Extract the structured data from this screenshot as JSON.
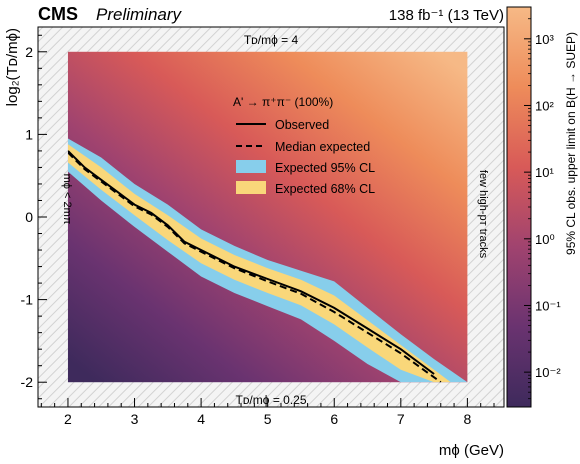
{
  "chart_data": {
    "type": "heatmap",
    "header": {
      "experiment": "CMS",
      "status": "Preliminary",
      "lumi": "138 fb⁻¹ (13 TeV)"
    },
    "xlabel": "mϕ (GeV)",
    "ylabel": "log₂(Tᴅ/mϕ)",
    "xlim": [
      1.55,
      8.55
    ],
    "ylim": [
      -2.3,
      2.3
    ],
    "x_ticks": [
      "2",
      "3",
      "4",
      "5",
      "6",
      "7",
      "8"
    ],
    "y_ticks": [
      "-2",
      "-1",
      "0",
      "1",
      "2"
    ],
    "colorbar": {
      "label": "95% CL obs. upper limit on B(H → SUEP)",
      "scale": "log",
      "range": [
        0.003,
        3000
      ],
      "ticks": [
        "10⁻²",
        "10⁻¹",
        "10⁰",
        "10¹",
        "10²",
        "10³"
      ],
      "colors": [
        "#3e2a5c",
        "#6a3370",
        "#a0436f",
        "#d85a58",
        "#ee8c5a",
        "#f6b986"
      ]
    },
    "heatmap_region": {
      "x": [
        2,
        8
      ],
      "y": [
        -2,
        2
      ]
    },
    "annotations": {
      "top": "Tᴅ/mϕ = 4",
      "bottom": "Tᴅ/mϕ = 0.25",
      "left": "mϕ < 2mπ",
      "right": "few high-pᴛ tracks"
    },
    "legend": {
      "title": "A' → π⁺π⁻ (100%)",
      "placement": "upper-center",
      "entries": [
        "Observed",
        "Median expected",
        "Expected 95% CL",
        "Expected 68% CL"
      ]
    },
    "band_colors": {
      "cl95": "#87ceeb",
      "cl68": "#f9d77a"
    },
    "series": [
      {
        "name": "Observed",
        "x": [
          2.0,
          2.25,
          2.5,
          2.75,
          3.0,
          3.25,
          3.5,
          3.75,
          4.0,
          4.5,
          5.0,
          5.5,
          6.0,
          6.5,
          7.0,
          7.5
        ],
        "y": [
          0.8,
          0.6,
          0.45,
          0.3,
          0.15,
          0.05,
          -0.1,
          -0.3,
          -0.4,
          -0.6,
          -0.75,
          -0.9,
          -1.1,
          -1.35,
          -1.6,
          -1.9
        ]
      },
      {
        "name": "Median expected",
        "x": [
          2.0,
          2.25,
          2.5,
          2.75,
          3.0,
          3.25,
          3.5,
          3.75,
          4.0,
          4.5,
          5.0,
          5.5,
          6.0,
          6.5,
          7.0,
          7.6
        ],
        "y": [
          0.78,
          0.58,
          0.43,
          0.28,
          0.13,
          0.03,
          -0.12,
          -0.32,
          -0.42,
          -0.62,
          -0.78,
          -0.93,
          -1.15,
          -1.4,
          -1.65,
          -2.0
        ]
      },
      {
        "name": "Expected 95% CL",
        "x": [
          2.0,
          2.5,
          3.0,
          3.5,
          4.0,
          4.5,
          5.0,
          5.5,
          6.0,
          6.5,
          7.0,
          7.5,
          8.0
        ],
        "y_low": [
          0.55,
          0.2,
          -0.12,
          -0.42,
          -0.72,
          -0.92,
          -1.08,
          -1.24,
          -1.5,
          -1.78,
          -2.0,
          -2.0,
          -2.0
        ],
        "y_high": [
          0.95,
          0.72,
          0.4,
          0.15,
          -0.15,
          -0.35,
          -0.52,
          -0.65,
          -0.78,
          -1.1,
          -1.42,
          -1.72,
          -2.0
        ]
      },
      {
        "name": "Expected 68% CL",
        "x": [
          2.0,
          2.5,
          3.0,
          3.5,
          4.0,
          4.5,
          5.0,
          5.5,
          6.0,
          6.5,
          7.0,
          7.5,
          7.75
        ],
        "y_low": [
          0.66,
          0.33,
          0.02,
          -0.28,
          -0.56,
          -0.76,
          -0.92,
          -1.07,
          -1.3,
          -1.58,
          -1.85,
          -2.0,
          -2.0
        ],
        "y_high": [
          0.88,
          0.6,
          0.28,
          0.02,
          -0.26,
          -0.46,
          -0.62,
          -0.76,
          -0.95,
          -1.25,
          -1.55,
          -1.85,
          -2.0
        ]
      }
    ]
  }
}
